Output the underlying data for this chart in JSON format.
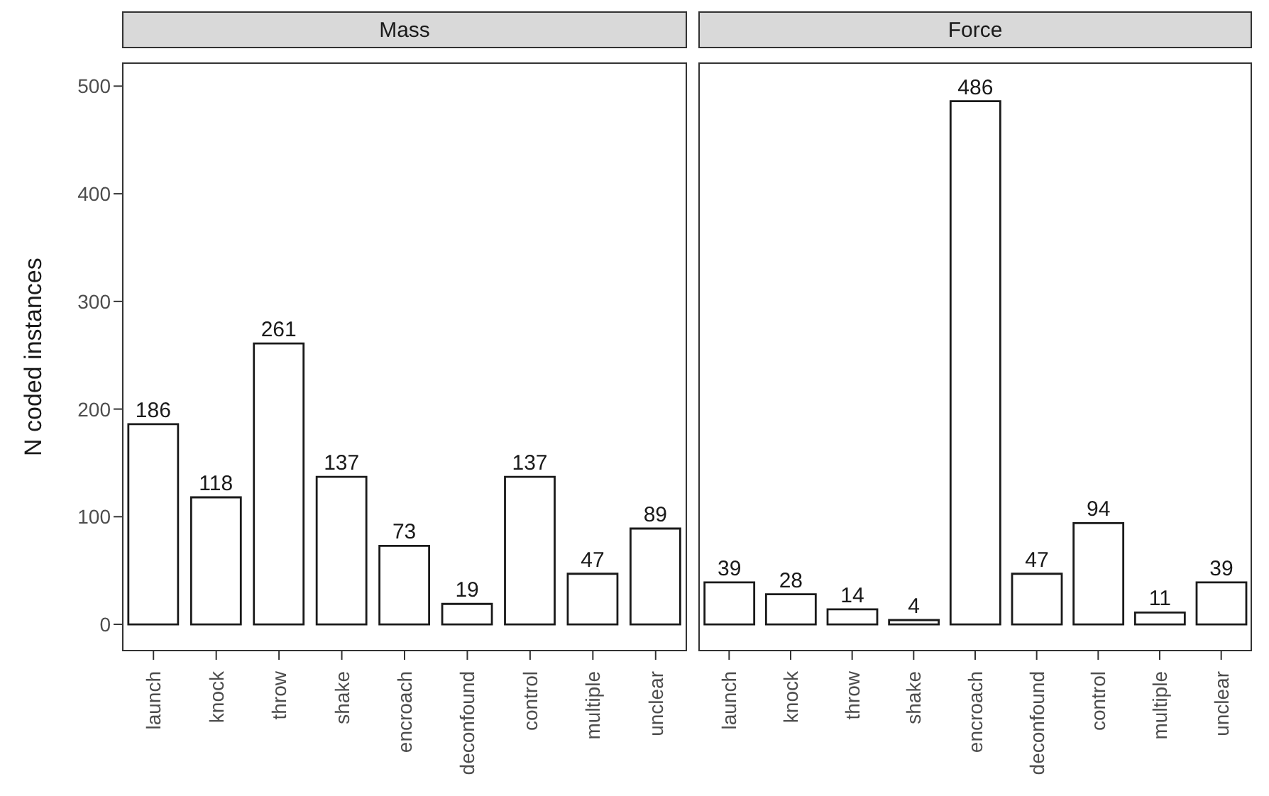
{
  "chart_data": [
    {
      "type": "bar",
      "title": "Mass",
      "ylabel": "N coded instances",
      "categories": [
        "launch",
        "knock",
        "throw",
        "shake",
        "encroach",
        "deconfound",
        "control",
        "multiple",
        "unclear"
      ],
      "series": [
        {
          "color": "#ffffff",
          "values": [
            186,
            118,
            261,
            137,
            73,
            19,
            137,
            47,
            89
          ]
        }
      ],
      "ylim": [
        -25,
        522
      ],
      "yticks": [
        0,
        100,
        200,
        300,
        400,
        500
      ],
      "grid": false,
      "data_labels": true
    },
    {
      "type": "bar",
      "title": "Force",
      "categories": [
        "launch",
        "knock",
        "throw",
        "shake",
        "encroach",
        "deconfound",
        "control",
        "multiple",
        "unclear"
      ],
      "series": [
        {
          "color": "#ffffff",
          "values": [
            39,
            28,
            14,
            4,
            486,
            47,
            94,
            11,
            39
          ]
        }
      ],
      "ylim": [
        -25,
        522
      ],
      "yticks": [
        0,
        100,
        200,
        300,
        400,
        500
      ],
      "grid": false,
      "data_labels": true,
      "tick_labels": "x"
    }
  ]
}
